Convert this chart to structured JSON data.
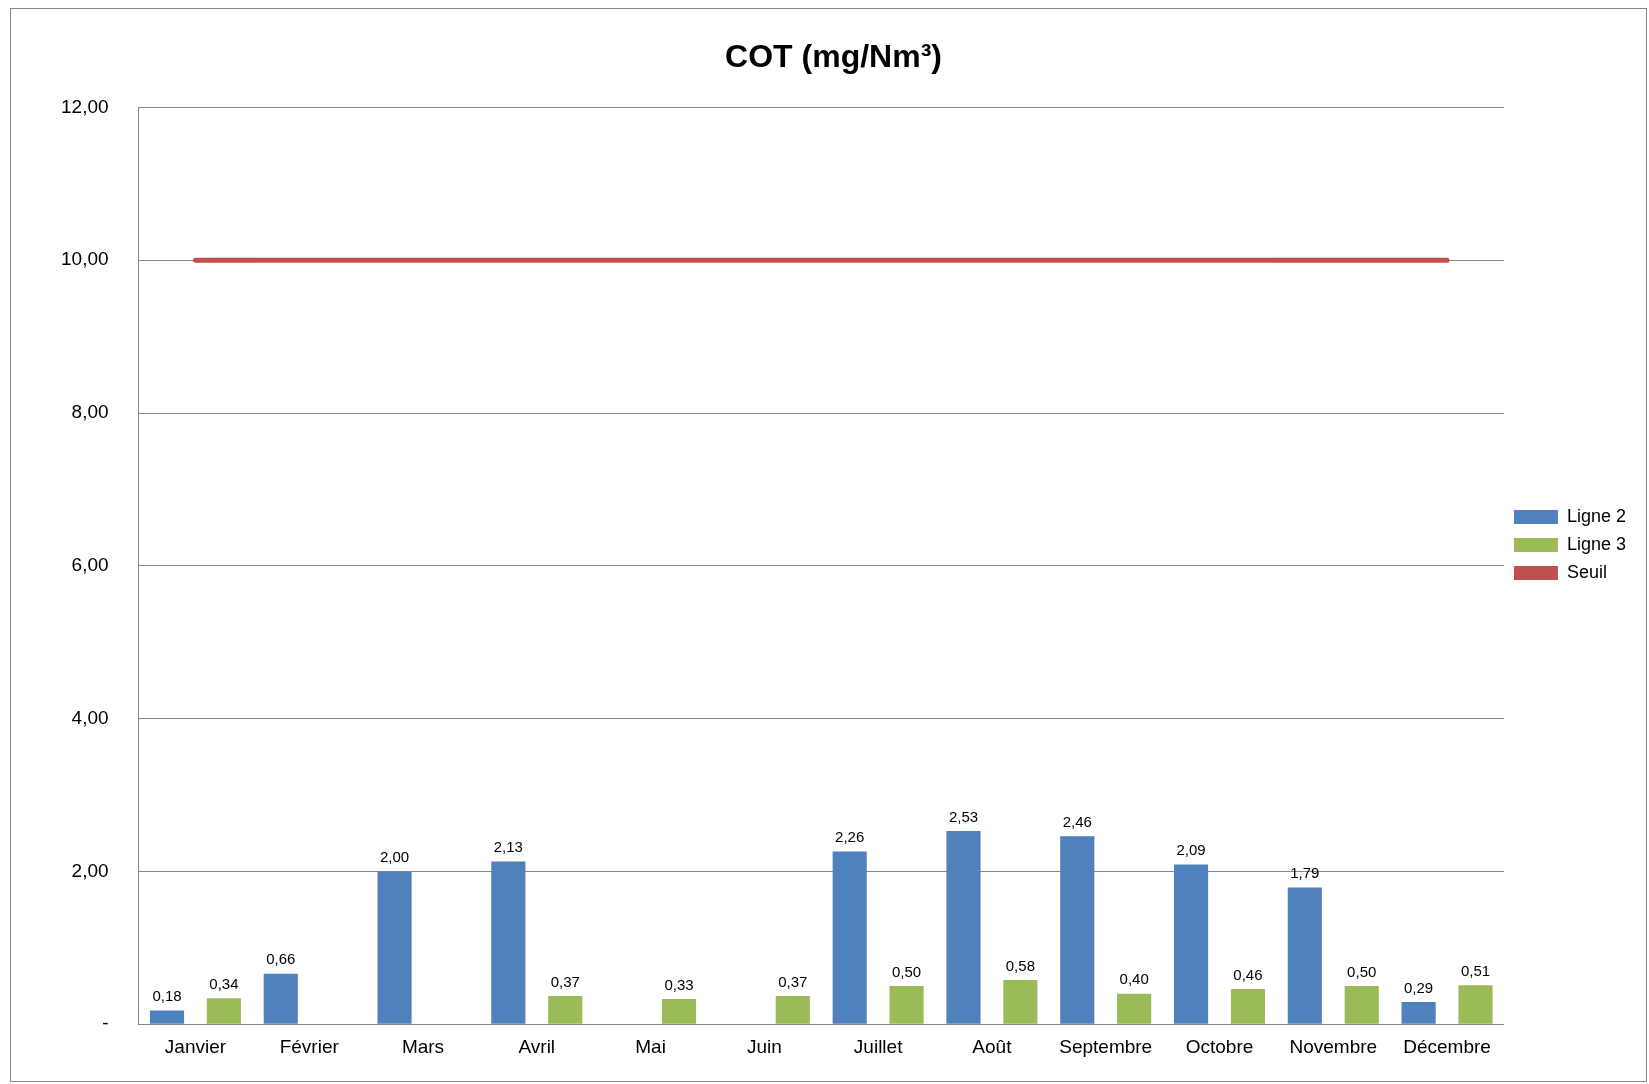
{
  "chart_data": {
    "type": "bar",
    "title": "COT (mg/Nm³)",
    "categories": [
      "Janvier",
      "Février",
      "Mars",
      "Avril",
      "Mai",
      "Juin",
      "Juillet",
      "Août",
      "Septembre",
      "Octobre",
      "Novembre",
      "Décembre"
    ],
    "series": [
      {
        "name": "Ligne 2",
        "color": "#4f81bd",
        "values": [
          0.18,
          0.66,
          2.0,
          2.13,
          null,
          null,
          2.26,
          2.53,
          2.46,
          2.09,
          1.79,
          0.29
        ],
        "value_labels": [
          "0,18",
          "0,66",
          "2,00",
          "2,13",
          null,
          null,
          "2,26",
          "2,53",
          "2,46",
          "2,09",
          "1,79",
          "0,29"
        ]
      },
      {
        "name": "Ligne 3",
        "color": "#9bbb59",
        "values": [
          0.34,
          null,
          null,
          0.37,
          0.33,
          0.37,
          0.5,
          0.58,
          0.4,
          0.46,
          0.5,
          0.51
        ],
        "value_labels": [
          "0,34",
          null,
          null,
          "0,37",
          "0,33",
          "0,37",
          "0,50",
          "0,58",
          "0,40",
          "0,46",
          "0,50",
          "0,51"
        ]
      },
      {
        "name": "Seuil",
        "type": "line",
        "color": "#c0504d",
        "values": [
          10,
          10,
          10,
          10,
          10,
          10,
          10,
          10,
          10,
          10,
          10,
          10
        ]
      }
    ],
    "ylim": [
      0,
      12
    ],
    "yticks": [
      {
        "value": 0,
        "label": "-"
      },
      {
        "value": 2,
        "label": "2,00"
      },
      {
        "value": 4,
        "label": "4,00"
      },
      {
        "value": 6,
        "label": "6,00"
      },
      {
        "value": 8,
        "label": "8,00"
      },
      {
        "value": 10,
        "label": "10,00"
      },
      {
        "value": 12,
        "label": "12,00"
      }
    ],
    "grid": "y",
    "legend": "right",
    "marker": "none"
  }
}
